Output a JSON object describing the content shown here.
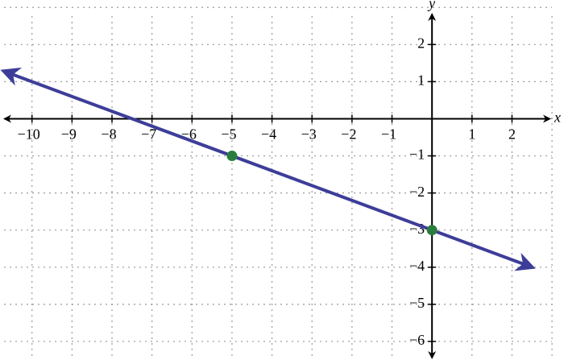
{
  "chart_data": {
    "type": "line",
    "x_label": "x",
    "y_label": "y",
    "xlim": [
      -10.8,
      3.3
    ],
    "ylim": [
      -6.5,
      3.2
    ],
    "xticks": [
      {
        "value": -10,
        "label": "−10"
      },
      {
        "value": -9,
        "label": "−9"
      },
      {
        "value": -8,
        "label": "−8"
      },
      {
        "value": -7,
        "label": "−7"
      },
      {
        "value": -6,
        "label": "−6"
      },
      {
        "value": -5,
        "label": "−5"
      },
      {
        "value": -4,
        "label": "−4"
      },
      {
        "value": -3,
        "label": "−3"
      },
      {
        "value": -2,
        "label": "−2"
      },
      {
        "value": -1,
        "label": "−1"
      },
      1,
      2
    ],
    "yticks": [
      2,
      1,
      {
        "value": -1,
        "label": "−1"
      },
      {
        "value": -2,
        "label": "−2"
      },
      {
        "value": -3,
        "label": "−3"
      },
      {
        "value": -4,
        "label": "−4"
      },
      {
        "value": -5,
        "label": "−5"
      },
      {
        "value": -6,
        "label": "−6"
      }
    ],
    "xgrid": [
      -10,
      -9,
      -8,
      -7,
      -6,
      -5,
      -4,
      -3,
      -2,
      -1,
      0,
      1,
      2,
      3
    ],
    "ygrid": [
      3,
      2,
      1,
      0,
      -1,
      -2,
      -3,
      -4,
      -5,
      -6
    ],
    "grid": true,
    "series": [
      {
        "type": "line",
        "color": "#3d3d99",
        "x": [
          -10.7,
          2.5
        ],
        "values": [
          1.28,
          -4
        ],
        "arrows": true
      },
      {
        "type": "scatter",
        "color": "#2a7d3e",
        "x": [
          -5,
          0
        ],
        "values": [
          -1,
          -3
        ]
      }
    ]
  }
}
